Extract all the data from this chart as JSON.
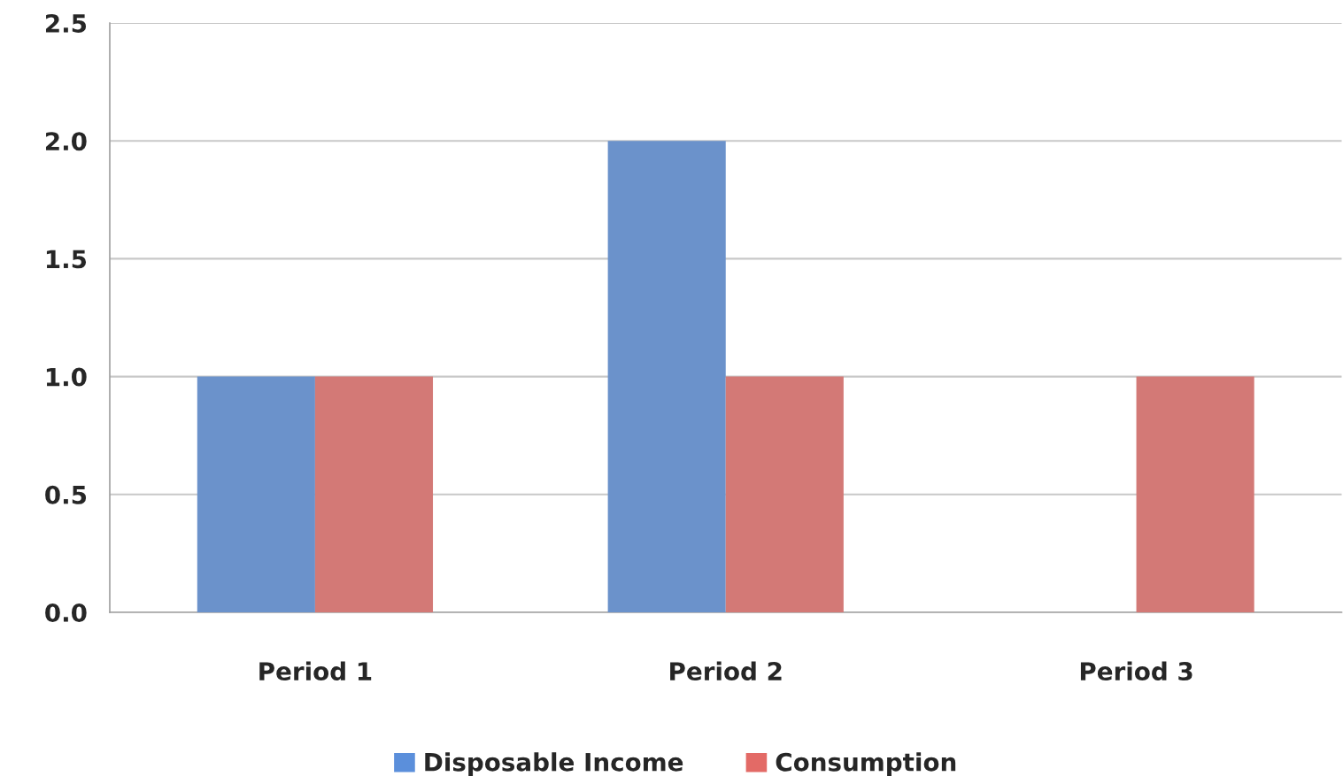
{
  "chart_data": {
    "type": "bar",
    "categories": [
      "Period 1",
      "Period 2",
      "Period 3"
    ],
    "series": [
      {
        "name": "Disposable Income",
        "color": "#5b8fdb",
        "values": [
          1.0,
          2.0,
          0
        ]
      },
      {
        "name": "Consumption",
        "color": "#e36a66",
        "values": [
          1.0,
          1.0,
          1.0
        ]
      }
    ],
    "ylim": [
      0,
      2.5
    ],
    "yticks": [
      {
        "value": 0,
        "label": "0.0"
      },
      {
        "value": 0.5,
        "label": "0.5"
      },
      {
        "value": 1,
        "label": "1.0"
      },
      {
        "value": 1.5,
        "label": "1.5"
      },
      {
        "value": 2,
        "label": "2.0"
      },
      {
        "value": 2.5,
        "label": "2.5"
      }
    ],
    "grid": "y",
    "legend": "bottom"
  }
}
